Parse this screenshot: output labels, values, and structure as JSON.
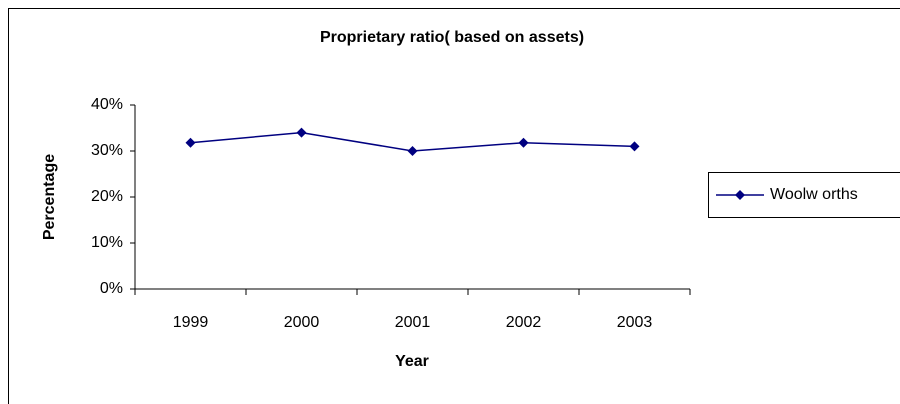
{
  "chart_data": {
    "type": "line",
    "title": "Proprietary ratio( based on assets)",
    "xlabel": "Year",
    "ylabel": "Percentage",
    "categories": [
      "1999",
      "2000",
      "2001",
      "2002",
      "2003"
    ],
    "series": [
      {
        "name": "Woolw orths",
        "color": "#000080",
        "values": [
          31.8,
          34,
          30,
          31.8,
          31
        ]
      }
    ],
    "ylim": [
      0,
      40
    ],
    "yticks": [
      {
        "value": 0,
        "label": "0%"
      },
      {
        "value": 10,
        "label": "10%"
      },
      {
        "value": 20,
        "label": "20%"
      },
      {
        "value": 30,
        "label": "30%"
      },
      {
        "value": 40,
        "label": "40%"
      }
    ],
    "legend": "right"
  }
}
